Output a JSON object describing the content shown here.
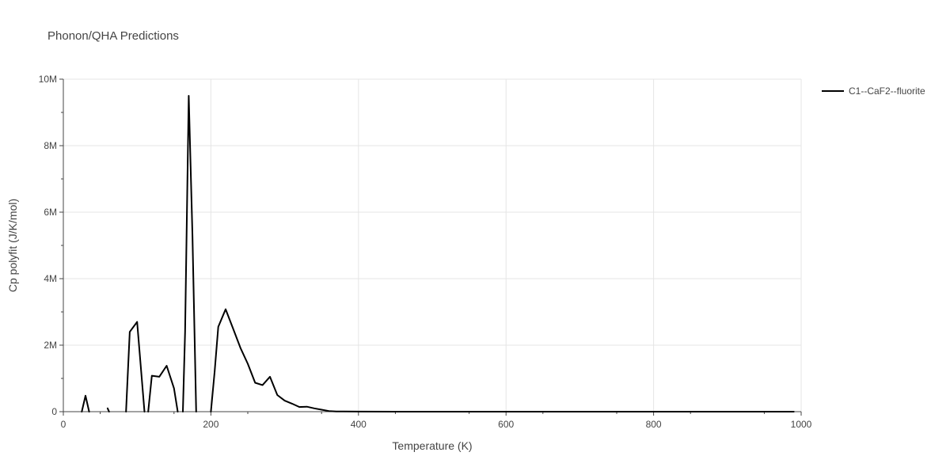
{
  "chart_data": {
    "type": "line",
    "title": "Phonon/QHA Predictions",
    "xlabel": "Temperature (K)",
    "ylabel": "Cp polyfit (J/K/mol)",
    "xlim": [
      0,
      1000
    ],
    "ylim": [
      0,
      10000000
    ],
    "x_ticks": [
      0,
      200,
      400,
      600,
      800,
      1000
    ],
    "x_tick_labels": [
      "0",
      "200",
      "400",
      "600",
      "800",
      "1000"
    ],
    "y_ticks": [
      0,
      2000000,
      4000000,
      6000000,
      8000000,
      10000000
    ],
    "y_tick_labels": [
      "0",
      "2M",
      "4M",
      "6M",
      "8M",
      "10M"
    ],
    "grid": true,
    "legend_position": "top-right",
    "colors": {
      "series": "#000000",
      "grid": "#e5e5e5",
      "axis": "#444444",
      "text": "#444444"
    },
    "series": [
      {
        "name": "C1--CaF2--fluorite",
        "segments": [
          {
            "x": [
              25,
              30,
              35
            ],
            "y": [
              0,
              480000,
              0
            ]
          },
          {
            "x": [
              60,
              62
            ],
            "y": [
              100000,
              0
            ]
          },
          {
            "x": [
              85,
              90,
              100,
              110
            ],
            "y": [
              0,
              2400000,
              2700000,
              0
            ]
          },
          {
            "x": [
              115,
              120,
              130,
              140,
              150,
              155
            ],
            "y": [
              0,
              1080000,
              1050000,
              1380000,
              700000,
              0
            ]
          },
          {
            "x": [
              162,
              165,
              170,
              175,
              180
            ],
            "y": [
              0,
              2400000,
              9500000,
              5300000,
              0
            ]
          },
          {
            "x": [
              200,
              205,
              210,
              220,
              230,
              240,
              250,
              260,
              270,
              280,
              290,
              300,
              310,
              320,
              330,
              340,
              350,
              360,
              370,
              380,
              400,
              450,
              500,
              600,
              700,
              800,
              900,
              990
            ],
            "y": [
              0,
              1200000,
              2550000,
              3080000,
              2500000,
              1920000,
              1440000,
              870000,
              800000,
              1050000,
              500000,
              330000,
              240000,
              140000,
              150000,
              100000,
              60000,
              20000,
              8000,
              4000,
              2000,
              1000,
              500,
              300,
              200,
              100,
              50,
              0
            ]
          }
        ]
      }
    ]
  }
}
